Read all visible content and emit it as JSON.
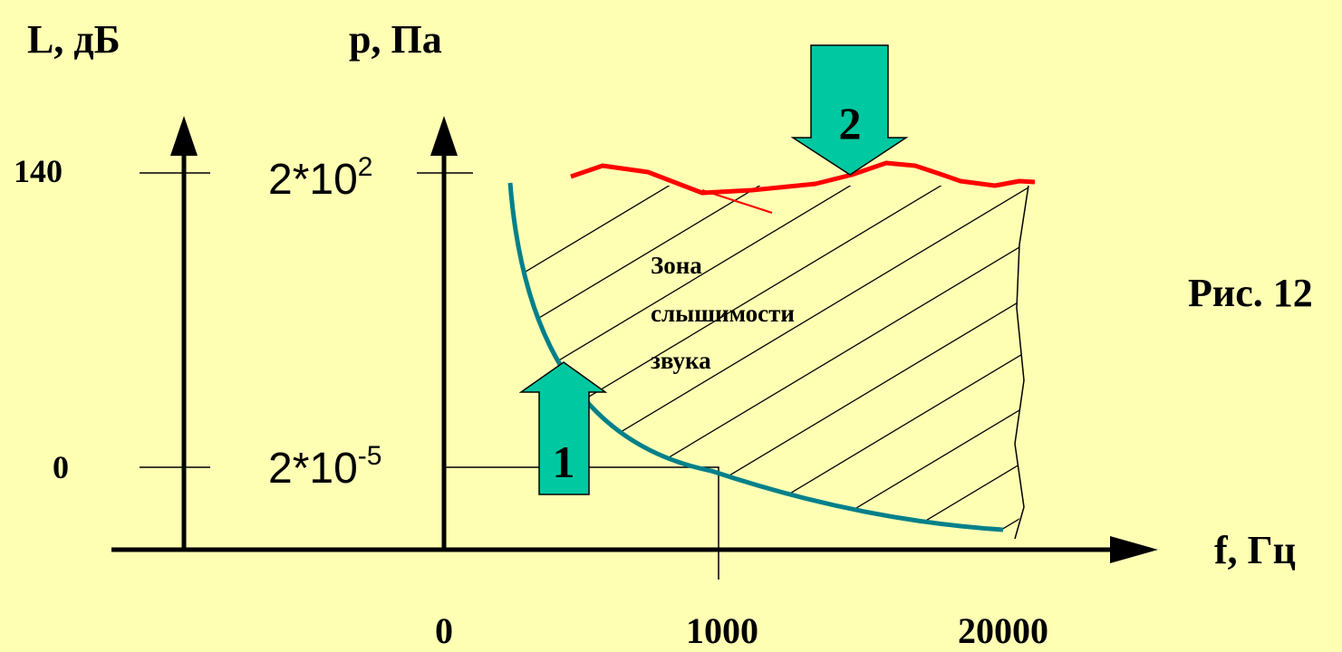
{
  "axes": {
    "left_label": "L, дБ",
    "middle_label": "p, Па",
    "x_label": "f, Гц"
  },
  "left_ticks": {
    "top": "140",
    "bottom": "0"
  },
  "pressure_ticks": {
    "top_base": "2*10",
    "top_exp": "2",
    "bottom_base": "2*10",
    "bottom_exp": "-5"
  },
  "x_ticks": {
    "a": "0",
    "b": "1000",
    "c": "20000"
  },
  "zone_label": {
    "line1": "Зона",
    "line2": "слышимости",
    "line3": "звука"
  },
  "arrows": {
    "threshold": "1",
    "pain": "2"
  },
  "caption": "Рис. 12",
  "colors": {
    "background": "#FFFFB4",
    "threshold_curve": "#00808A",
    "pain_curve": "#FF0000",
    "arrow_fill": "#00C8A0",
    "ink": "#000000"
  }
}
